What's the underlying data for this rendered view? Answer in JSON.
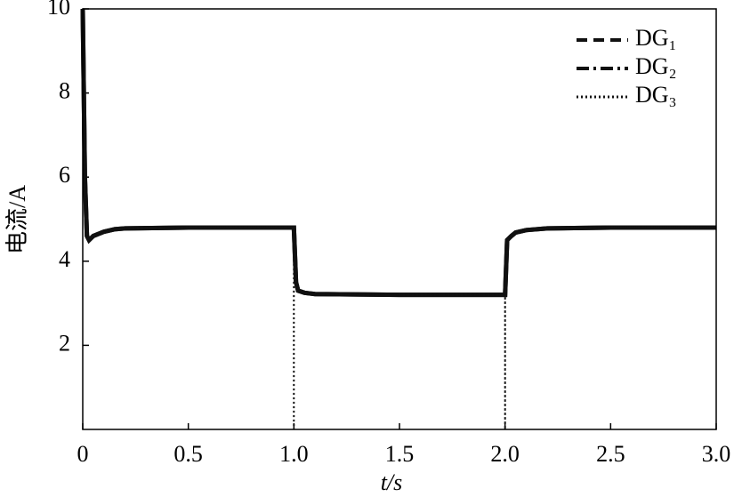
{
  "chart_data": {
    "type": "line",
    "x_label": "t/s",
    "y_label": "电流/A",
    "xlim": [
      0,
      3
    ],
    "ylim": [
      0,
      10
    ],
    "xticks": [
      0,
      0.5,
      {
        "value": 1,
        "label": "1.0"
      },
      1.5,
      {
        "value": 2,
        "label": "2.0"
      },
      2.5,
      {
        "value": 3,
        "label": "3.0"
      }
    ],
    "yticks": [
      2,
      4,
      6,
      8,
      10
    ],
    "legend": "upper right",
    "x": [
      0,
      0.01,
      0.02,
      0.03,
      0.05,
      0.1,
      0.15,
      0.2,
      0.5,
      0.99,
      1.0,
      1.0,
      1.0,
      1.01,
      1.02,
      1.05,
      1.1,
      1.5,
      1.99,
      2.0,
      2.0,
      2.0,
      2.01,
      2.03,
      2.05,
      2.1,
      2.2,
      2.5,
      3.0
    ],
    "series": [
      {
        "name": "DG₁",
        "color": "#111111",
        "dash": "dashed",
        "values": [
          10,
          6,
          4.6,
          4.5,
          4.6,
          4.7,
          4.76,
          4.78,
          4.8,
          4.8,
          4.8,
          4.8,
          4.8,
          3.5,
          3.3,
          3.25,
          3.22,
          3.2,
          3.2,
          3.2,
          3.2,
          3.2,
          4.5,
          4.6,
          4.68,
          4.74,
          4.78,
          4.8,
          4.8
        ]
      },
      {
        "name": "DG₂",
        "color": "#111111",
        "dash": "dashdot",
        "values": [
          10,
          6,
          4.6,
          4.5,
          4.6,
          4.7,
          4.76,
          4.78,
          4.8,
          4.8,
          4.8,
          4.8,
          4.8,
          3.5,
          3.3,
          3.25,
          3.22,
          3.2,
          3.2,
          3.2,
          3.2,
          3.2,
          4.5,
          4.6,
          4.68,
          4.74,
          4.78,
          4.8,
          4.8
        ]
      },
      {
        "name": "DG₃",
        "color": "#111111",
        "dash": "dotted",
        "values": [
          10,
          6,
          4.6,
          4.5,
          4.6,
          4.7,
          4.76,
          4.78,
          4.8,
          4.8,
          4.8,
          0,
          4.8,
          3.5,
          3.3,
          3.25,
          3.22,
          3.2,
          3.2,
          3.2,
          0,
          3.2,
          4.5,
          4.6,
          4.68,
          4.74,
          4.78,
          4.8,
          4.8
        ]
      }
    ]
  }
}
